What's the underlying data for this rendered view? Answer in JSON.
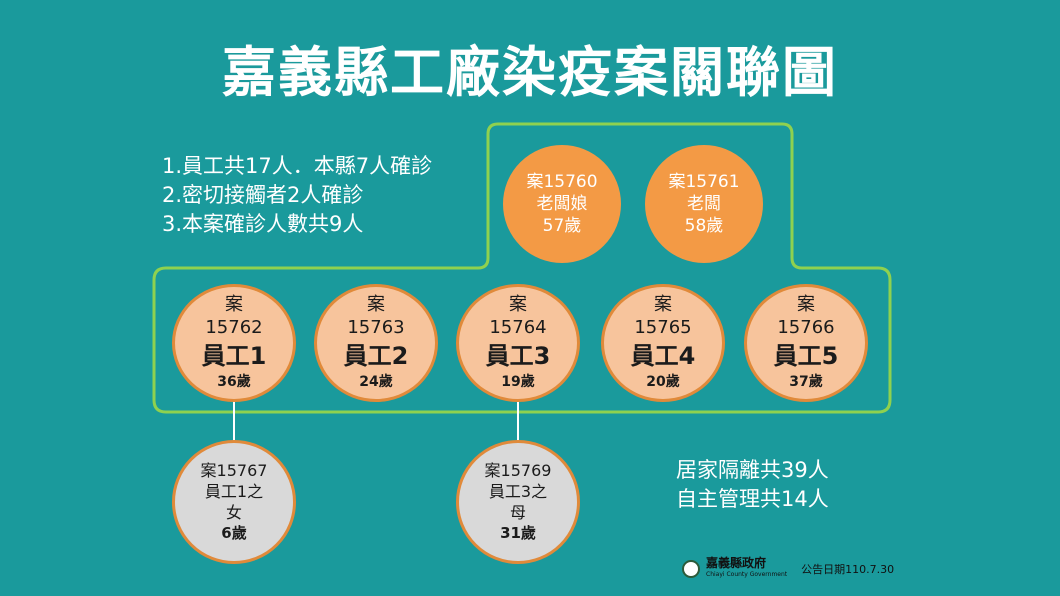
{
  "title": "嘉義縣工廠染疫案關聯圖",
  "notes": [
    "1.員工共17人．本縣7人確診",
    "2.密切接觸者2人確診",
    "3.本案確診人數共9人"
  ],
  "bosses": [
    {
      "case": "案15760",
      "role": "老闆娘",
      "age": "57歲"
    },
    {
      "case": "案15761",
      "role": "老闆",
      "age": "58歲"
    }
  ],
  "employees": [
    {
      "case_label": "案",
      "case_no": "15762",
      "role": "員工1",
      "age": "36歲"
    },
    {
      "case_label": "案",
      "case_no": "15763",
      "role": "員工2",
      "age": "24歲"
    },
    {
      "case_label": "案",
      "case_no": "15764",
      "role": "員工3",
      "age": "19歲"
    },
    {
      "case_label": "案",
      "case_no": "15765",
      "role": "員工4",
      "age": "20歲"
    },
    {
      "case_label": "案",
      "case_no": "15766",
      "role": "員工5",
      "age": "37歲"
    }
  ],
  "family": [
    {
      "case": "案15767",
      "rel1": "員工1之",
      "rel2": "女",
      "age": "6歲"
    },
    {
      "case": "案15769",
      "rel1": "員工3之",
      "rel2": "母",
      "age": "31歲"
    }
  ],
  "quarantine": {
    "home": "居家隔離共39人",
    "self": "自主管理共14人"
  },
  "footer": {
    "gov_name": "嘉義縣政府",
    "gov_en": "Chiayi County Government",
    "date": "公告日期110.7.30"
  },
  "colors": {
    "background": "#1a9a9c",
    "frame": "#8fd14f",
    "boss": "#f39a45",
    "employee": "#f7c49c",
    "family": "#d9d9d9"
  }
}
